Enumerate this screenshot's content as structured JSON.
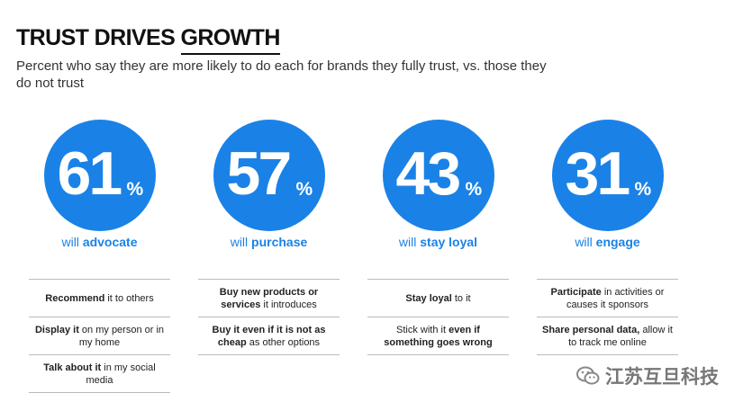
{
  "title_pre": "TRUST DRIVES ",
  "title_ul": "GROWTH",
  "subtitle": "Percent who say they are more likely to do each for brands they fully trust, vs. those they do not trust",
  "chart_data": {
    "type": "table",
    "title": "TRUST DRIVES GROWTH",
    "categories": [
      "will advocate",
      "will purchase",
      "will stay loyal",
      "will engage"
    ],
    "values": [
      61,
      57,
      43,
      31
    ],
    "unit": "%",
    "accent_color": "#1a82e6"
  },
  "stats": [
    {
      "number": "61",
      "pct": "%",
      "caption_pre": "will ",
      "caption_bold": "advocate",
      "rows": [
        [
          {
            "b": "Recommend"
          },
          {
            "t": " it to others"
          }
        ],
        [
          {
            "b": "Display it"
          },
          {
            "t": " on my person or in my home"
          }
        ],
        [
          {
            "b": "Talk about it"
          },
          {
            "t": " in my social media"
          }
        ]
      ]
    },
    {
      "number": "57",
      "pct": "%",
      "caption_pre": "will ",
      "caption_bold": "purchase",
      "rows": [
        [
          {
            "b": "Buy new products or services"
          },
          {
            "t": " it introduces"
          }
        ],
        [
          {
            "b": "Buy it even if it is not as cheap"
          },
          {
            "t": " as other options"
          }
        ]
      ]
    },
    {
      "number": "43",
      "pct": "%",
      "caption_pre": "will ",
      "caption_bold": "stay loyal",
      "rows": [
        [
          {
            "b": "Stay loyal"
          },
          {
            "t": " to it"
          }
        ],
        [
          {
            "t": "Stick with it "
          },
          {
            "b": "even if something goes wrong"
          }
        ]
      ]
    },
    {
      "number": "31",
      "pct": "%",
      "caption_pre": "will ",
      "caption_bold": "engage",
      "rows": [
        [
          {
            "b": "Participate"
          },
          {
            "t": " in activities or causes it sponsors"
          }
        ],
        [
          {
            "b": "Share personal data,"
          },
          {
            "t": " allow it to track me online"
          }
        ]
      ]
    }
  ],
  "watermark": "江苏互旦科技",
  "watermark_icon": "wechat-icon"
}
